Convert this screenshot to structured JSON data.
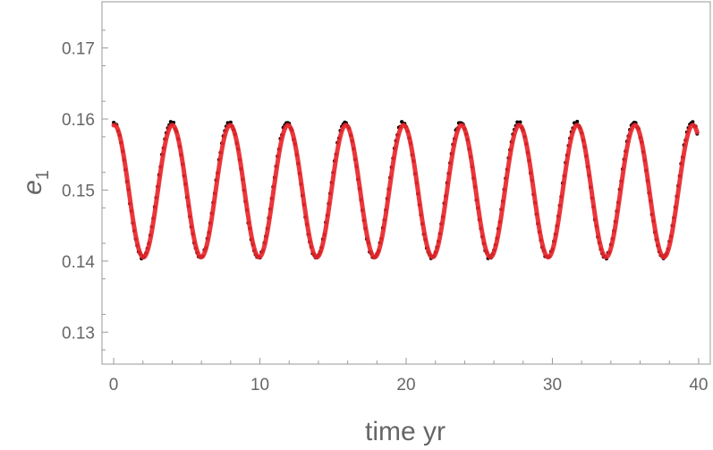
{
  "chart_data": {
    "type": "scatter",
    "xlabel": "time  yr",
    "ylabel": "e",
    "ylabel_subscript": "1",
    "xlim": [
      -0.8,
      40.8
    ],
    "ylim": [
      0.1255,
      0.1765
    ],
    "x_ticks": [
      0,
      10,
      20,
      30,
      40
    ],
    "y_ticks": [
      0.13,
      0.14,
      0.15,
      0.16,
      0.17
    ],
    "y_tick_labels": [
      "0.13",
      "0.14",
      "0.15",
      "0.16",
      "0.17"
    ],
    "frame": "box",
    "grid": false,
    "series": [
      {
        "kind": "points",
        "color": "#000000",
        "formula": "e = 0.1500 + 0.0095*cos(2*pi*t/3.955)",
        "t_step": 0.1,
        "t_range": [
          0,
          39.9
        ]
      },
      {
        "kind": "line",
        "color": "#e8262a",
        "formula": "e = 0.14985 + 0.0093*cos(2*pi*t/3.955 - 0.08)",
        "t_range": [
          0,
          39.9
        ]
      }
    ],
    "description": "Eccentricity e1 oscillating between about 0.140 and 0.160 with a period of about 4 yr; black points are numerical data, red curve is a fit."
  },
  "colors": {
    "frame": "#999999",
    "text": "#666666",
    "points": "#000000",
    "fit": "#e8262a"
  }
}
